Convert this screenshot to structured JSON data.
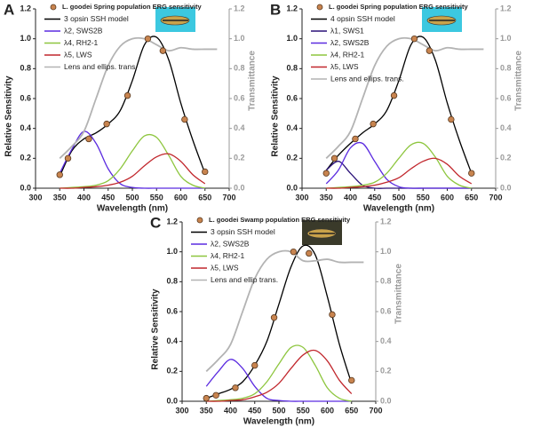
{
  "chart_data": [
    {
      "type": "line",
      "label": "A",
      "xlabel": "Wavelength (nm)",
      "ylabel": "Relative Sensitivity",
      "y2label": "Transmittance",
      "xlim": [
        300,
        700
      ],
      "xticks": [
        300,
        350,
        400,
        450,
        500,
        550,
        600,
        650,
        700
      ],
      "ylim": [
        0,
        1.2
      ],
      "yticks": [
        {
          "value": 0,
          "label": "0.0"
        },
        0.2,
        0.4,
        0.6,
        0.8,
        {
          "value": 1,
          "label": "1.0"
        },
        1.2
      ],
      "y2lim": [
        0,
        1.2
      ],
      "y2ticks": [
        {
          "value": 0,
          "label": "0.0"
        },
        0.2,
        0.4,
        0.6,
        0.8,
        {
          "value": 1,
          "label": "1.0"
        },
        1.2
      ],
      "series": [
        {
          "name": "L. goodei Spring population ERG sensitivity",
          "type": "scatter",
          "color": "#c8844f",
          "x": [
            350,
            367,
            410,
            447,
            490,
            532,
            563,
            608,
            650
          ],
          "values": [
            0.09,
            0.2,
            0.33,
            0.43,
            0.62,
            1.0,
            0.92,
            0.46,
            0.11
          ]
        },
        {
          "name": "3 opsin SSH model",
          "type": "line",
          "color": "#000000",
          "x": [
            350,
            375,
            400,
            425,
            450,
            475,
            500,
            525,
            550,
            575,
            600,
            625,
            650
          ],
          "values": [
            0.08,
            0.25,
            0.33,
            0.37,
            0.43,
            0.52,
            0.72,
            0.96,
            1.01,
            0.86,
            0.57,
            0.32,
            0.1
          ]
        },
        {
          "name": "λ2, SWS2B",
          "type": "line",
          "color": "#5b2be0",
          "x": [
            350,
            375,
            400,
            425,
            450,
            475,
            500,
            525,
            550,
            575,
            600,
            625,
            650
          ],
          "values": [
            0.1,
            0.26,
            0.38,
            0.3,
            0.13,
            0.03,
            0.005,
            0,
            0,
            0,
            0,
            0,
            0
          ]
        },
        {
          "name": "λ4, RH2-1",
          "type": "line",
          "color": "#8ec63f",
          "x": [
            350,
            375,
            400,
            425,
            450,
            475,
            500,
            525,
            550,
            575,
            600,
            625,
            650
          ],
          "values": [
            0,
            0.005,
            0.01,
            0.02,
            0.05,
            0.13,
            0.25,
            0.35,
            0.34,
            0.22,
            0.08,
            0.02,
            0
          ]
        },
        {
          "name": "λ5, LWS",
          "type": "line",
          "color": "#c1272d",
          "x": [
            350,
            375,
            400,
            425,
            450,
            475,
            500,
            525,
            550,
            575,
            600,
            625,
            650
          ],
          "values": [
            0,
            0,
            0.005,
            0.01,
            0.02,
            0.04,
            0.08,
            0.15,
            0.21,
            0.23,
            0.18,
            0.09,
            0.03
          ]
        },
        {
          "name": "Lens and ellips. trans.",
          "type": "line",
          "axis": "y2",
          "color": "#b3b3b3",
          "x": [
            350,
            375,
            400,
            425,
            450,
            475,
            500,
            525,
            550,
            575,
            600,
            625,
            650,
            675
          ],
          "values": [
            0.2,
            0.28,
            0.38,
            0.6,
            0.82,
            0.95,
            1.0,
            1.0,
            0.96,
            0.92,
            0.94,
            0.93,
            0.93,
            0.93
          ]
        }
      ]
    },
    {
      "type": "line",
      "label": "B",
      "xlabel": "Wavelength (nm)",
      "ylabel": "Relative Sensitivity",
      "y2label": "Transmittance",
      "xlim": [
        300,
        700
      ],
      "xticks": [
        300,
        350,
        400,
        450,
        500,
        550,
        600,
        650,
        700
      ],
      "ylim": [
        0,
        1.2
      ],
      "yticks": [
        {
          "value": 0,
          "label": "0.0"
        },
        0.2,
        0.4,
        0.6,
        0.8,
        {
          "value": 1,
          "label": "1.0"
        },
        1.2
      ],
      "y2lim": [
        0,
        1.2
      ],
      "y2ticks": [
        {
          "value": 0,
          "label": "0.0"
        },
        0.2,
        0.4,
        0.6,
        0.8,
        {
          "value": 1,
          "label": "1.0"
        },
        1.2
      ],
      "series": [
        {
          "name": "L. goodei Spring population ERG sensitivity",
          "type": "scatter",
          "color": "#c8844f",
          "x": [
            350,
            367,
            410,
            447,
            490,
            532,
            563,
            608,
            650
          ],
          "values": [
            0.1,
            0.2,
            0.33,
            0.43,
            0.62,
            1.0,
            0.92,
            0.46,
            0.1
          ]
        },
        {
          "name": "4 opsin SSH model",
          "type": "line",
          "color": "#000000",
          "x": [
            350,
            375,
            400,
            425,
            450,
            475,
            500,
            525,
            550,
            575,
            600,
            625,
            650
          ],
          "values": [
            0.12,
            0.22,
            0.3,
            0.37,
            0.43,
            0.52,
            0.72,
            0.96,
            1.01,
            0.86,
            0.57,
            0.32,
            0.1
          ]
        },
        {
          "name": "λ1, SWS1",
          "type": "line",
          "color": "#2a1078",
          "x": [
            350,
            375,
            400,
            425,
            450,
            475,
            500,
            525,
            550,
            575,
            600,
            625,
            650
          ],
          "values": [
            0.12,
            0.18,
            0.1,
            0.02,
            0,
            0,
            0,
            0,
            0,
            0,
            0,
            0,
            0
          ]
        },
        {
          "name": "λ2, SWS2B",
          "type": "line",
          "color": "#5b2be0",
          "x": [
            350,
            375,
            400,
            425,
            450,
            475,
            500,
            525,
            550,
            575,
            600,
            625,
            650
          ],
          "values": [
            0.03,
            0.12,
            0.27,
            0.3,
            0.18,
            0.06,
            0.01,
            0,
            0,
            0,
            0,
            0,
            0
          ]
        },
        {
          "name": "λ4, RH2-1",
          "type": "line",
          "color": "#8ec63f",
          "x": [
            350,
            375,
            400,
            425,
            450,
            475,
            500,
            525,
            550,
            575,
            600,
            625,
            650
          ],
          "values": [
            0,
            0.005,
            0.01,
            0.02,
            0.04,
            0.1,
            0.2,
            0.29,
            0.3,
            0.21,
            0.08,
            0.02,
            0
          ]
        },
        {
          "name": "λ5, LWS",
          "type": "line",
          "color": "#c1272d",
          "x": [
            350,
            375,
            400,
            425,
            450,
            475,
            500,
            525,
            550,
            575,
            600,
            625,
            650
          ],
          "values": [
            0,
            0,
            0.005,
            0.01,
            0.02,
            0.04,
            0.07,
            0.13,
            0.18,
            0.2,
            0.16,
            0.08,
            0.03
          ]
        },
        {
          "name": "Lens and ellips. trans.",
          "type": "line",
          "axis": "y2",
          "color": "#b3b3b3",
          "x": [
            350,
            375,
            400,
            425,
            450,
            475,
            500,
            525,
            550,
            575,
            600,
            625,
            650,
            675
          ],
          "values": [
            0.2,
            0.28,
            0.38,
            0.6,
            0.82,
            0.95,
            1.0,
            1.0,
            0.96,
            0.92,
            0.94,
            0.93,
            0.93,
            0.93
          ]
        }
      ]
    },
    {
      "type": "line",
      "label": "C",
      "xlabel": "Wavelength (nm)",
      "ylabel": "Relative Sensitivity",
      "y2label": "Transmittance",
      "xlim": [
        300,
        700
      ],
      "xticks": [
        300,
        350,
        400,
        450,
        500,
        550,
        600,
        650,
        700
      ],
      "ylim": [
        0,
        1.2
      ],
      "yticks": [
        {
          "value": 0,
          "label": "0.0"
        },
        0.2,
        0.4,
        0.6,
        0.8,
        {
          "value": 1,
          "label": "1.0"
        },
        1.2
      ],
      "y2lim": [
        0,
        1.2
      ],
      "y2ticks": [
        {
          "value": 0,
          "label": "0.0"
        },
        0.2,
        0.4,
        0.6,
        0.8,
        {
          "value": 1,
          "label": "1.0"
        },
        1.2
      ],
      "series": [
        {
          "name": "L. goodei Swamp population ERG sensitivity",
          "type": "scatter",
          "color": "#c8844f",
          "x": [
            350,
            370,
            410,
            450,
            490,
            530,
            562,
            610,
            650
          ],
          "values": [
            0.02,
            0.04,
            0.09,
            0.24,
            0.56,
            1.0,
            0.99,
            0.58,
            0.14
          ]
        },
        {
          "name": "3 opsin SSH model",
          "type": "line",
          "color": "#000000",
          "x": [
            350,
            375,
            400,
            425,
            450,
            475,
            500,
            525,
            550,
            575,
            600,
            625,
            650
          ],
          "values": [
            0.02,
            0.05,
            0.08,
            0.13,
            0.24,
            0.4,
            0.65,
            0.9,
            1.04,
            0.98,
            0.7,
            0.38,
            0.12
          ]
        },
        {
          "name": "λ2, SWS2B",
          "type": "line",
          "color": "#5b2be0",
          "x": [
            350,
            375,
            400,
            425,
            450,
            475,
            500,
            525,
            550,
            575,
            600,
            625,
            650
          ],
          "values": [
            0.1,
            0.2,
            0.28,
            0.22,
            0.1,
            0.02,
            0.005,
            0,
            0,
            0,
            0,
            0,
            0
          ]
        },
        {
          "name": "λ4, RH2-1",
          "type": "line",
          "color": "#8ec63f",
          "x": [
            350,
            375,
            400,
            425,
            450,
            475,
            500,
            525,
            550,
            575,
            600,
            625,
            650
          ],
          "values": [
            0,
            0.005,
            0.01,
            0.02,
            0.05,
            0.13,
            0.25,
            0.36,
            0.36,
            0.24,
            0.09,
            0.02,
            0
          ]
        },
        {
          "name": "λ5, LWS",
          "type": "line",
          "color": "#c1272d",
          "x": [
            350,
            375,
            400,
            425,
            450,
            475,
            500,
            525,
            550,
            575,
            600,
            625,
            650
          ],
          "values": [
            0,
            0,
            0.005,
            0.01,
            0.03,
            0.06,
            0.12,
            0.22,
            0.31,
            0.34,
            0.27,
            0.14,
            0.05
          ]
        },
        {
          "name": "Lens and ellip trans.",
          "type": "line",
          "axis": "y2",
          "color": "#b3b3b3",
          "x": [
            350,
            375,
            400,
            425,
            450,
            475,
            500,
            525,
            550,
            575,
            600,
            625,
            650,
            675
          ],
          "values": [
            0.2,
            0.28,
            0.38,
            0.6,
            0.82,
            0.95,
            1.0,
            1.0,
            0.94,
            0.94,
            0.95,
            0.93,
            0.93,
            0.93
          ]
        }
      ]
    }
  ]
}
